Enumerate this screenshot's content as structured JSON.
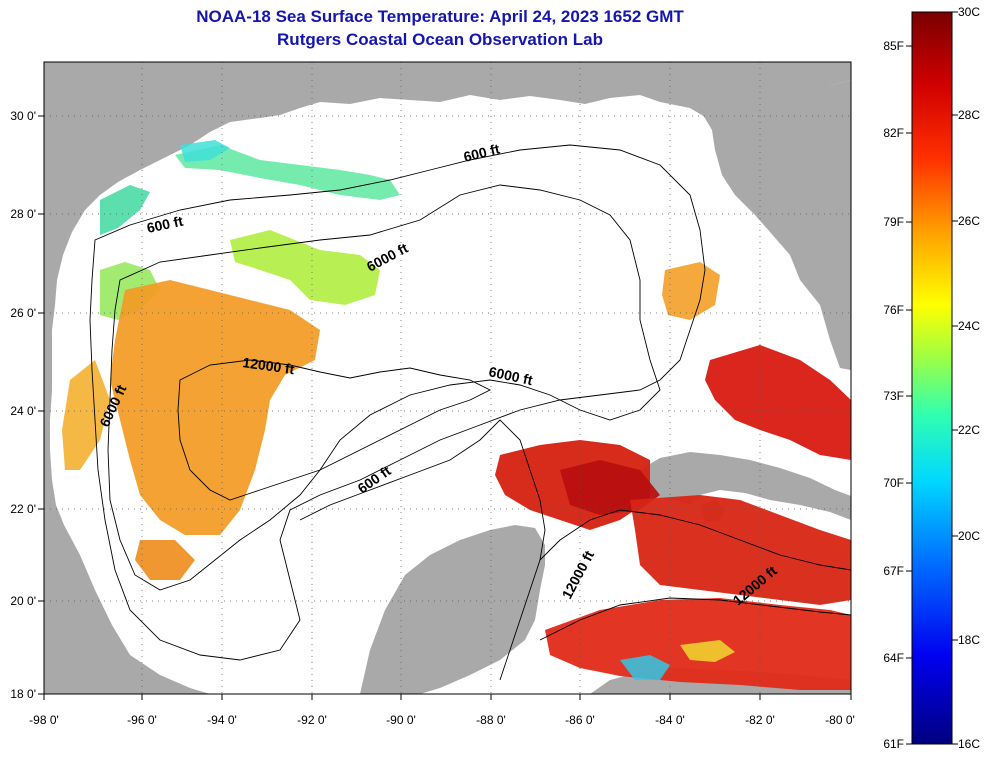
{
  "header": {
    "title": "NOAA-18 Sea Surface Temperature:  April 24, 2023 1652 GMT",
    "subtitle": "Rutgers Coastal Ocean Observation Lab"
  },
  "map": {
    "lat_labels": [
      "30 0'",
      "28 0'",
      "26 0'",
      "24 0'",
      "22 0'",
      "20 0'",
      "18 0'"
    ],
    "lon_labels": [
      "-98 0'",
      "-96 0'",
      "-94 0'",
      "-92 0'",
      "-90 0'",
      "-88 0'",
      "-86 0'",
      "-84 0'",
      "-82 0'",
      "-80 0'"
    ],
    "contour_labels": [
      "600 ft",
      "600 ft",
      "6000 ft",
      "12000 ft",
      "6000 ft",
      "6000 ft",
      "600 ft",
      "12000 ft",
      "12000 ft"
    ],
    "colors": {
      "land": "#a9a9a9",
      "no_data": "#ffffff",
      "warm": "#d81a10",
      "mid": "#f08c1c",
      "cool": "#40e0c0"
    }
  },
  "colorbar": {
    "fahrenheit_labels": [
      "85F",
      "82F",
      "79F",
      "76F",
      "73F",
      "70F",
      "67F",
      "64F",
      "61F"
    ],
    "celsius_labels": [
      "30C",
      "28C",
      "26C",
      "24C",
      "22C",
      "20C",
      "18C",
      "16C"
    ]
  }
}
